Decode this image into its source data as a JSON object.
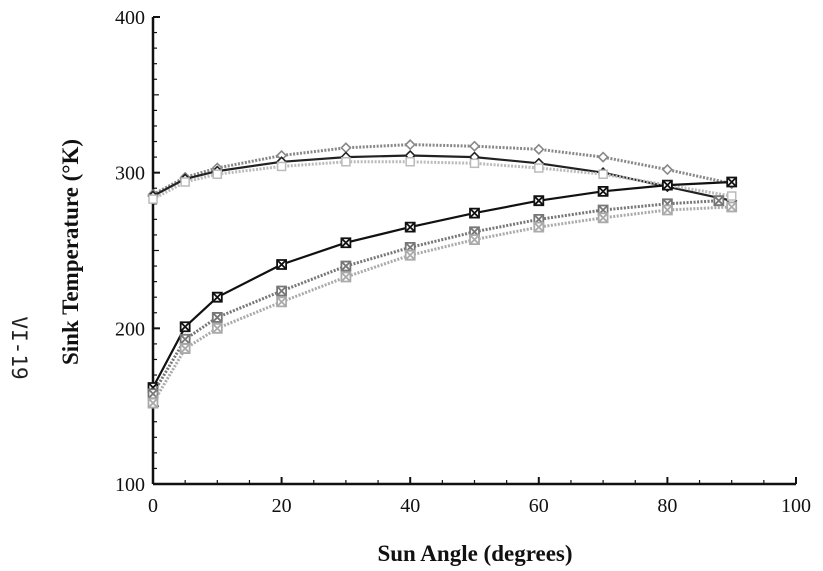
{
  "page_number": "VI-19",
  "chart_data": {
    "type": "line",
    "title": "",
    "xlabel": "Sun Angle (degrees)",
    "ylabel": "Sink Temperature (°K)",
    "xlim": [
      0,
      100
    ],
    "ylim": [
      100,
      400
    ],
    "xticks": [
      "0",
      "20",
      "40",
      "60",
      "80",
      "100"
    ],
    "yticks": [
      "100",
      "200",
      "300",
      "400"
    ],
    "grid": false,
    "legend": "none",
    "series": [
      {
        "color": "#888888",
        "marker": "diamond",
        "style": "dotted",
        "x": [
          0,
          5,
          10,
          20,
          30,
          40,
          50,
          60,
          70,
          80,
          90
        ],
        "y": [
          286,
          297,
          303,
          311,
          316,
          318,
          317,
          315,
          310,
          302,
          293
        ]
      },
      {
        "color": "#222222",
        "marker": "diamond",
        "style": "solid",
        "x": [
          0,
          5,
          10,
          20,
          30,
          40,
          50,
          60,
          70,
          80,
          90
        ],
        "y": [
          285,
          296,
          301,
          307,
          310,
          311,
          310,
          306,
          300,
          291,
          282
        ]
      },
      {
        "color": "#bbbbbb",
        "marker": "square",
        "style": "dotted",
        "x": [
          0,
          5,
          10,
          20,
          30,
          40,
          50,
          60,
          70,
          80,
          90
        ],
        "y": [
          283,
          294,
          299,
          304,
          307,
          307,
          306,
          303,
          299,
          292,
          285
        ]
      },
      {
        "color": "#111111",
        "marker": "x-square",
        "style": "solid",
        "x": [
          0,
          5,
          10,
          20,
          30,
          40,
          50,
          60,
          70,
          80,
          90
        ],
        "y": [
          162,
          201,
          220,
          241,
          255,
          265,
          274,
          282,
          288,
          292,
          294
        ]
      },
      {
        "color": "#777777",
        "marker": "x-square",
        "style": "dotted",
        "x": [
          0,
          5,
          10,
          20,
          30,
          40,
          50,
          60,
          70,
          80,
          88
        ],
        "y": [
          158,
          193,
          207,
          224,
          240,
          252,
          262,
          270,
          276,
          280,
          282
        ]
      },
      {
        "color": "#aaaaaa",
        "marker": "x-square",
        "style": "dotted",
        "x": [
          0,
          5,
          10,
          20,
          30,
          40,
          50,
          60,
          70,
          80,
          90
        ],
        "y": [
          152,
          187,
          200,
          217,
          233,
          247,
          257,
          265,
          271,
          276,
          278
        ]
      }
    ]
  }
}
